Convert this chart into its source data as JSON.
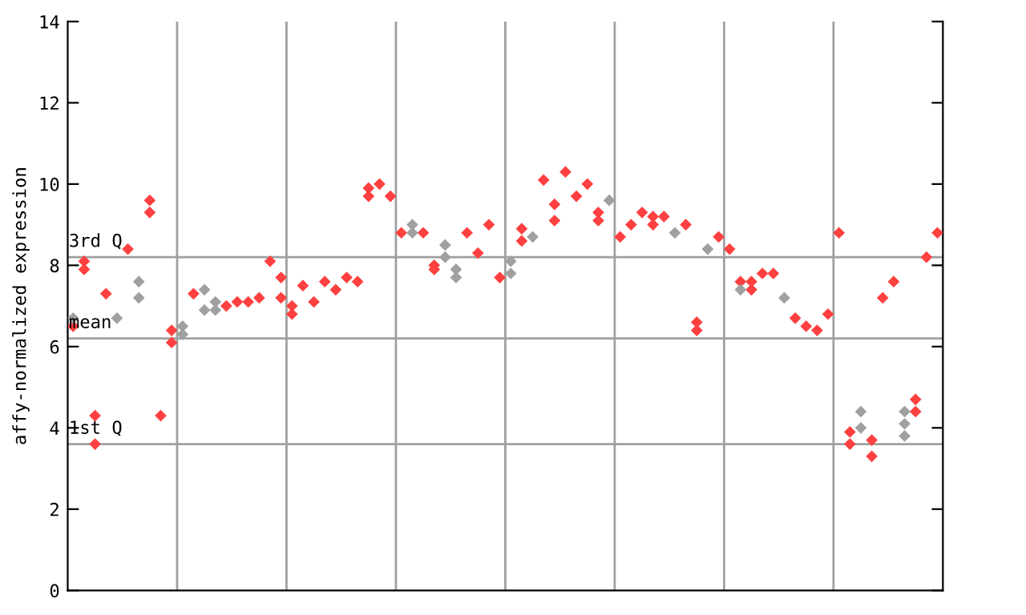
{
  "chart_data": {
    "type": "scatter",
    "ylabel": "affy-normalized expression",
    "categories": [
      null,
      null,
      null,
      null,
      null,
      null,
      null,
      null,
      null,
      null,
      null,
      null,
      null,
      null,
      null,
      null,
      null,
      null,
      null,
      null,
      null,
      null,
      null,
      null,
      null,
      null,
      null,
      null,
      null,
      null,
      null,
      null,
      null,
      null,
      null,
      null,
      null,
      null,
      null,
      null,
      null,
      null,
      null,
      null,
      null,
      null,
      null,
      null,
      null,
      null,
      null,
      null,
      null,
      null,
      null,
      null,
      null,
      null,
      null,
      null,
      null,
      null,
      null,
      null,
      null,
      null,
      null,
      null,
      null,
      null,
      null,
      null,
      null,
      null,
      null,
      null,
      null,
      null,
      null,
      null
    ],
    "ylim": [
      0,
      14
    ],
    "yticks": [
      0,
      2,
      4,
      6,
      8,
      10,
      12,
      14
    ],
    "marker": "diamond",
    "ref_lines": [
      {
        "axis": "y",
        "value": 8.2,
        "label": "3rd Q",
        "color": "#a0a0a0"
      },
      {
        "axis": "y",
        "value": 6.2,
        "label": "mean",
        "color": "#a0a0a0"
      },
      {
        "axis": "y",
        "value": 3.6,
        "label": "1st Q",
        "color": "#a0a0a0"
      }
    ],
    "series": [
      {
        "color": "#ff4040",
        "values": [
          6.5,
          7.9,
          4.3,
          7.3,
          null,
          8.4,
          null,
          9.6,
          4.3,
          6.4,
          null,
          7.3,
          null,
          null,
          7.0,
          7.1,
          7.1,
          7.2,
          8.1,
          7.7,
          7.0,
          7.5,
          7.1,
          7.6,
          7.4,
          7.7,
          7.6,
          9.9,
          10.0,
          9.7,
          8.8,
          null,
          8.8,
          8.0,
          null,
          null,
          8.8,
          8.3,
          9.0,
          7.7,
          null,
          8.9,
          null,
          10.1,
          9.5,
          10.3,
          9.7,
          10.0,
          9.3,
          null,
          8.7,
          9.0,
          9.3,
          9.2,
          9.2,
          null,
          9.0,
          6.6,
          null,
          8.7,
          8.4,
          7.6,
          7.6,
          7.8,
          7.8,
          null,
          6.7,
          6.5,
          6.4,
          6.8,
          8.8,
          3.9,
          null,
          3.7,
          7.2,
          7.6,
          null,
          4.7,
          8.2,
          8.8
        ]
      },
      {
        "color": "#ff4040",
        "values": [
          null,
          8.1,
          3.6,
          null,
          null,
          null,
          null,
          9.3,
          null,
          6.1,
          null,
          null,
          null,
          null,
          null,
          null,
          null,
          null,
          null,
          7.2,
          6.8,
          null,
          null,
          null,
          null,
          null,
          null,
          9.7,
          null,
          null,
          null,
          null,
          null,
          7.9,
          null,
          null,
          null,
          null,
          null,
          null,
          null,
          8.6,
          null,
          null,
          9.1,
          null,
          null,
          null,
          9.1,
          null,
          null,
          null,
          null,
          9.0,
          null,
          null,
          null,
          6.4,
          null,
          null,
          null,
          null,
          7.4,
          null,
          null,
          null,
          null,
          null,
          null,
          null,
          null,
          3.6,
          null,
          3.3,
          null,
          null,
          null,
          4.4,
          null,
          null
        ]
      },
      {
        "color": "#a0a0a0",
        "values": [
          6.7,
          null,
          null,
          null,
          6.7,
          null,
          7.6,
          null,
          null,
          null,
          6.5,
          null,
          7.4,
          7.1,
          null,
          null,
          null,
          null,
          null,
          null,
          null,
          null,
          null,
          null,
          null,
          null,
          null,
          null,
          null,
          null,
          null,
          9.0,
          null,
          null,
          8.5,
          7.9,
          null,
          null,
          null,
          null,
          8.1,
          null,
          8.7,
          null,
          null,
          null,
          null,
          null,
          null,
          9.6,
          null,
          null,
          null,
          null,
          null,
          8.8,
          null,
          null,
          8.4,
          null,
          null,
          7.4,
          null,
          null,
          null,
          7.2,
          null,
          null,
          null,
          null,
          null,
          null,
          4.4,
          null,
          null,
          null,
          4.4,
          null,
          null,
          null
        ]
      },
      {
        "color": "#a0a0a0",
        "values": [
          null,
          null,
          null,
          null,
          null,
          null,
          7.2,
          null,
          null,
          null,
          6.3,
          null,
          6.9,
          6.9,
          null,
          null,
          null,
          null,
          null,
          null,
          null,
          null,
          null,
          null,
          null,
          null,
          null,
          null,
          null,
          null,
          null,
          8.8,
          null,
          null,
          8.2,
          7.7,
          null,
          null,
          null,
          null,
          7.8,
          null,
          null,
          null,
          null,
          null,
          null,
          null,
          null,
          null,
          null,
          null,
          null,
          null,
          null,
          null,
          null,
          null,
          null,
          null,
          null,
          null,
          null,
          null,
          null,
          null,
          null,
          null,
          null,
          null,
          null,
          null,
          4.0,
          null,
          null,
          null,
          4.1,
          null,
          null,
          null
        ]
      },
      {
        "color": "#a0a0a0",
        "values": [
          null,
          null,
          null,
          null,
          null,
          null,
          null,
          null,
          null,
          null,
          null,
          null,
          null,
          null,
          null,
          null,
          null,
          null,
          null,
          null,
          null,
          null,
          null,
          null,
          null,
          null,
          null,
          null,
          null,
          null,
          null,
          null,
          null,
          null,
          null,
          null,
          null,
          null,
          null,
          null,
          null,
          null,
          null,
          null,
          null,
          null,
          null,
          null,
          null,
          null,
          null,
          null,
          null,
          null,
          null,
          null,
          null,
          null,
          null,
          null,
          null,
          null,
          null,
          null,
          null,
          null,
          null,
          null,
          null,
          null,
          null,
          null,
          null,
          null,
          null,
          null,
          3.8,
          null,
          null,
          null
        ]
      }
    ]
  }
}
